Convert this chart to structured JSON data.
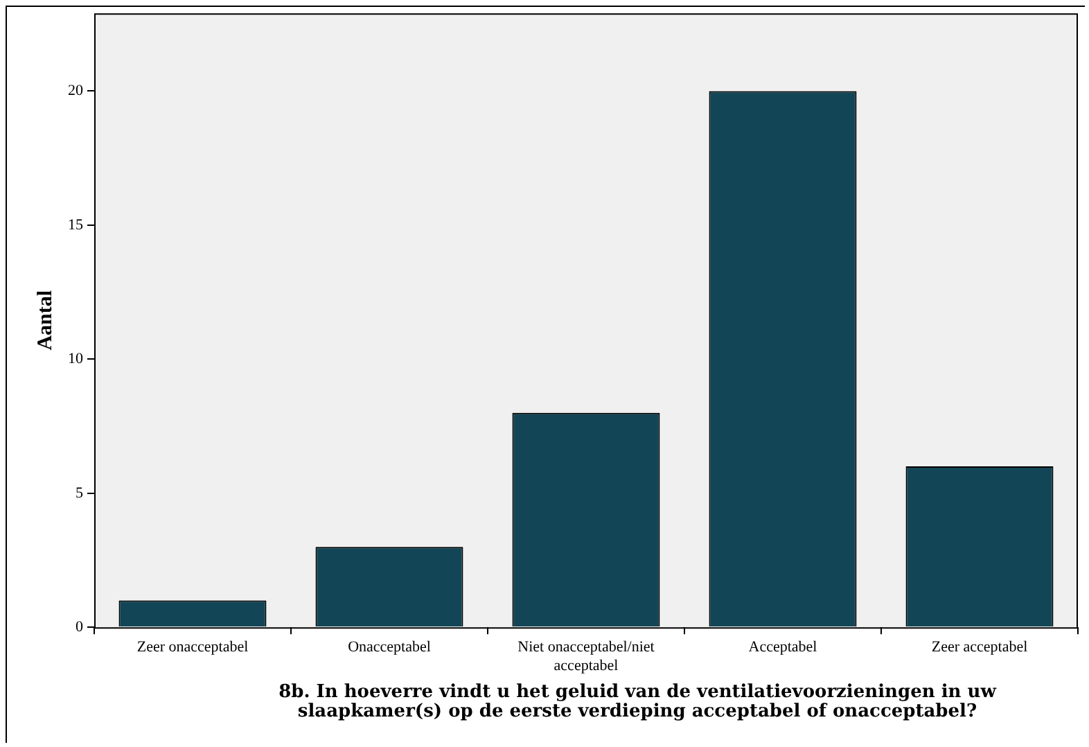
{
  "chart_data": {
    "type": "bar",
    "xlabel": "8b. In hoeverre vindt u het geluid van de ventilatievoorzieningen in uw slaapkamer(s) op de eerste verdieping acceptabel of onacceptabel?",
    "ylabel": "Aantal",
    "categories": [
      "Zeer onacceptabel",
      "Onacceptabel",
      "Niet onacceptabel/niet acceptabel",
      "Acceptabel",
      "Zeer acceptabel"
    ],
    "values": [
      1,
      3,
      8,
      20,
      6
    ],
    "color": "#124656",
    "ylim": [
      0,
      22.9
    ],
    "yticks": [
      0,
      5,
      10,
      15,
      20
    ],
    "grid": false,
    "legend": false
  }
}
